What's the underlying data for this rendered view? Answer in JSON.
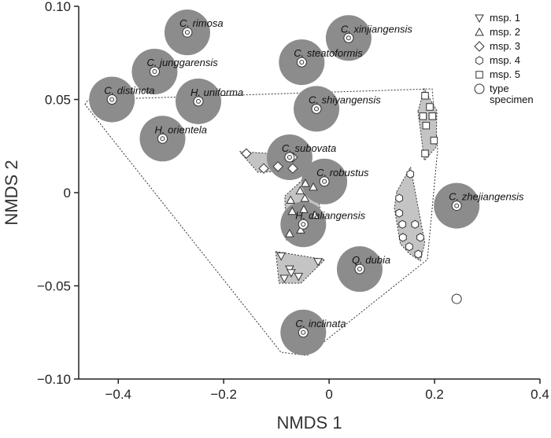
{
  "chart_data": {
    "type": "scatter",
    "xlabel": "NMDS 1",
    "ylabel": "NMDS 2",
    "xlim": [
      -0.475,
      0.4
    ],
    "ylim": [
      -0.1,
      0.1
    ],
    "xticks": [
      {
        "value": -0.4,
        "label": "−0.4"
      },
      {
        "value": -0.2,
        "label": "−0.2"
      },
      0,
      0.2,
      0.4
    ],
    "yticks": [
      {
        "value": -0.1,
        "label": "−0.10"
      },
      {
        "value": -0.05,
        "label": "−0.05"
      },
      0,
      0.05,
      {
        "value": 0.1,
        "label": "0.10"
      }
    ],
    "legend": "top-right",
    "series": [
      {
        "name": "msp. 1",
        "marker": "triangle-down",
        "color": "#ffffff",
        "hull": true,
        "x": [
          -0.091,
          -0.075,
          -0.085,
          -0.058,
          -0.021,
          -0.072
        ],
        "values": [
          -0.034,
          -0.041,
          -0.046,
          -0.045,
          -0.037,
          -0.043
        ]
      },
      {
        "name": "msp. 2",
        "marker": "triangle-up",
        "color": "#ffffff",
        "hull": true,
        "x": [
          -0.045,
          -0.03,
          -0.055,
          -0.073,
          -0.046,
          -0.07,
          -0.048,
          -0.027,
          -0.075,
          -0.054
        ],
        "values": [
          0.005,
          0.003,
          0.001,
          -0.004,
          -0.003,
          -0.01,
          -0.009,
          -0.012,
          -0.022,
          -0.02
        ]
      },
      {
        "name": "msp. 3",
        "marker": "diamond",
        "color": "#ffffff",
        "hull": true,
        "x": [
          -0.157,
          -0.097,
          -0.069,
          -0.069,
          -0.124
        ],
        "values": [
          0.021,
          0.014,
          0.019,
          0.013,
          0.013
        ]
      },
      {
        "name": "msp. 4",
        "marker": "hexagon",
        "color": "#ffffff",
        "hull": true,
        "x": [
          0.154,
          0.133,
          0.133,
          0.139,
          0.14,
          0.163,
          0.173,
          0.152,
          0.169
        ],
        "values": [
          0.01,
          -0.003,
          -0.011,
          -0.017,
          -0.024,
          -0.017,
          -0.024,
          -0.029,
          -0.033
        ]
      },
      {
        "name": "msp. 5",
        "marker": "square",
        "color": "#ffffff",
        "hull": true,
        "x": [
          0.182,
          0.191,
          0.178,
          0.196,
          0.184,
          0.199,
          0.182
        ],
        "values": [
          0.052,
          0.046,
          0.041,
          0.041,
          0.036,
          0.028,
          0.021
        ]
      },
      {
        "name": "type specimen",
        "marker": "circle",
        "color": "#ffffff",
        "halo_color": "#8c8c8c",
        "hull": false,
        "labels": [
          "C. rimosa",
          "C. junggarensis",
          "C. distincta",
          "H. uniforma",
          "H. orientela",
          "C. xinjiangensis",
          "C. steatoformis",
          "C. shiyangensis",
          "C. subovata",
          "C. robustus",
          "H. daliangensis",
          "C. zhejiangensis",
          "Q. dubia",
          "C. inclinata",
          null
        ],
        "x": [
          -0.269,
          -0.331,
          -0.412,
          -0.248,
          -0.316,
          0.037,
          -0.052,
          -0.024,
          -0.075,
          -0.009,
          -0.049,
          0.242,
          0.058,
          -0.049,
          0.242
        ],
        "values": [
          0.086,
          0.065,
          0.05,
          0.049,
          0.029,
          0.083,
          0.07,
          0.045,
          0.019,
          0.006,
          -0.017,
          -0.007,
          -0.041,
          -0.075,
          -0.057
        ]
      }
    ]
  }
}
